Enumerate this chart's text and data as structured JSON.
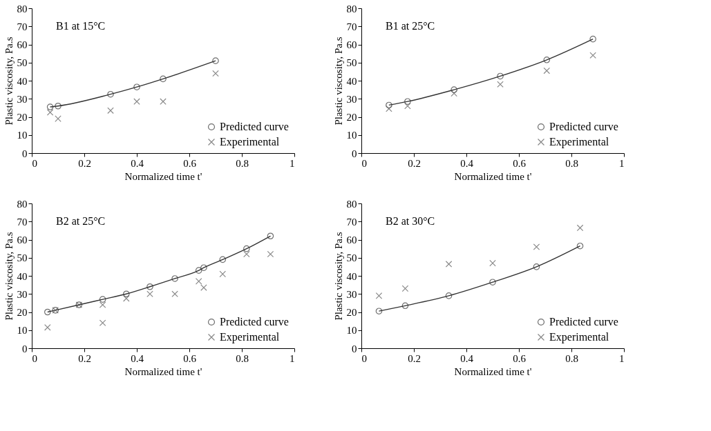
{
  "chart_data": [
    {
      "type": "scatter",
      "annotations": [
        "B1 at 15°C"
      ],
      "xlabel": "Normalized time t'",
      "ylabel": "Plastic viscosity, Pa.s",
      "xlim": [
        0,
        1
      ],
      "ylim": [
        0,
        80
      ],
      "xticks": [
        0,
        0.2,
        0.4,
        0.6,
        0.8,
        1
      ],
      "yticks": [
        0,
        10,
        20,
        30,
        40,
        50,
        60,
        70,
        80
      ],
      "grid": false,
      "legend": "bottom right",
      "series": [
        {
          "name": "Predicted curve",
          "type": "line",
          "marker": "circle",
          "color": "#333333",
          "x": [
            0.07,
            0.1,
            0.3,
            0.4,
            0.5,
            0.7
          ],
          "values": [
            25.5,
            26,
            32.5,
            36.5,
            41,
            51
          ]
        },
        {
          "name": "Experimental",
          "type": "scatter",
          "marker": "cross",
          "color": "#555555",
          "x": [
            0.07,
            0.1,
            0.3,
            0.4,
            0.5,
            0.7
          ],
          "values": [
            22.5,
            19,
            23.5,
            28.5,
            28.5,
            44
          ]
        }
      ]
    },
    {
      "type": "scatter",
      "annotations": [
        "B1 at 25°C"
      ],
      "xlabel": "Normalized time t'",
      "ylabel": "Plastic viscosity, Pa.s",
      "xlim": [
        0,
        1
      ],
      "ylim": [
        0,
        80
      ],
      "xticks": [
        0,
        0.2,
        0.4,
        0.6,
        0.8,
        1
      ],
      "yticks": [
        0,
        10,
        20,
        30,
        40,
        50,
        60,
        70,
        80
      ],
      "grid": false,
      "legend": "bottom right",
      "series": [
        {
          "name": "Predicted curve",
          "type": "line",
          "marker": "circle",
          "color": "#333333",
          "x": [
            0.105,
            0.176,
            0.353,
            0.529,
            0.706,
            0.882
          ],
          "values": [
            26.5,
            28.5,
            35,
            42.5,
            51.5,
            63
          ]
        },
        {
          "name": "Experimental",
          "type": "scatter",
          "marker": "cross",
          "color": "#555555",
          "x": [
            0.105,
            0.176,
            0.353,
            0.529,
            0.706,
            0.882
          ],
          "values": [
            24.5,
            26,
            33,
            38,
            45.5,
            54
          ]
        }
      ]
    },
    {
      "type": "scatter",
      "annotations": [
        "B2 at 25°C"
      ],
      "xlabel": "Normalized time t'",
      "ylabel": "Plastic viscosity, Pa.s",
      "xlim": [
        0,
        1
      ],
      "ylim": [
        0,
        80
      ],
      "xticks": [
        0,
        0.2,
        0.4,
        0.6,
        0.8,
        1
      ],
      "yticks": [
        0,
        10,
        20,
        30,
        40,
        50,
        60,
        70,
        80
      ],
      "grid": false,
      "legend": "bottom right",
      "series": [
        {
          "name": "Predicted curve",
          "type": "line",
          "marker": "circle",
          "color": "#333333",
          "x": [
            0.06,
            0.09,
            0.18,
            0.27,
            0.36,
            0.45,
            0.545,
            0.636,
            0.655,
            0.727,
            0.818,
            0.909
          ],
          "values": [
            20,
            21,
            24,
            27,
            30,
            34,
            38.5,
            43,
            44.5,
            49,
            55,
            62
          ]
        },
        {
          "name": "Experimental",
          "type": "scatter",
          "marker": "cross",
          "color": "#555555",
          "x": [
            0.06,
            0.09,
            0.18,
            0.27,
            0.27,
            0.36,
            0.45,
            0.545,
            0.636,
            0.655,
            0.727,
            0.818,
            0.909
          ],
          "values": [
            11.5,
            21,
            24,
            24,
            14,
            27.5,
            30,
            30,
            37,
            33.5,
            41,
            52,
            52
          ]
        }
      ]
    },
    {
      "type": "scatter",
      "annotations": [
        "B2 at 30°C"
      ],
      "xlabel": "Normalized time t'",
      "ylabel": "Plastic viscosity, Pa.s",
      "xlim": [
        0,
        1
      ],
      "ylim": [
        0,
        80
      ],
      "xticks": [
        0,
        0.2,
        0.4,
        0.6,
        0.8,
        1
      ],
      "yticks": [
        0,
        10,
        20,
        30,
        40,
        50,
        60,
        70,
        80
      ],
      "grid": false,
      "legend": "bottom right",
      "series": [
        {
          "name": "Predicted curve",
          "type": "line",
          "marker": "circle",
          "color": "#333333",
          "x": [
            0.067,
            0.167,
            0.333,
            0.5,
            0.667,
            0.833
          ],
          "values": [
            20.5,
            23.5,
            29,
            36.5,
            45,
            56.5
          ]
        },
        {
          "name": "Experimental",
          "type": "scatter",
          "marker": "cross",
          "color": "#555555",
          "x": [
            0.067,
            0.167,
            0.333,
            0.5,
            0.667,
            0.833
          ],
          "values": [
            29,
            33,
            46.5,
            47,
            56,
            66.5
          ]
        }
      ]
    }
  ]
}
